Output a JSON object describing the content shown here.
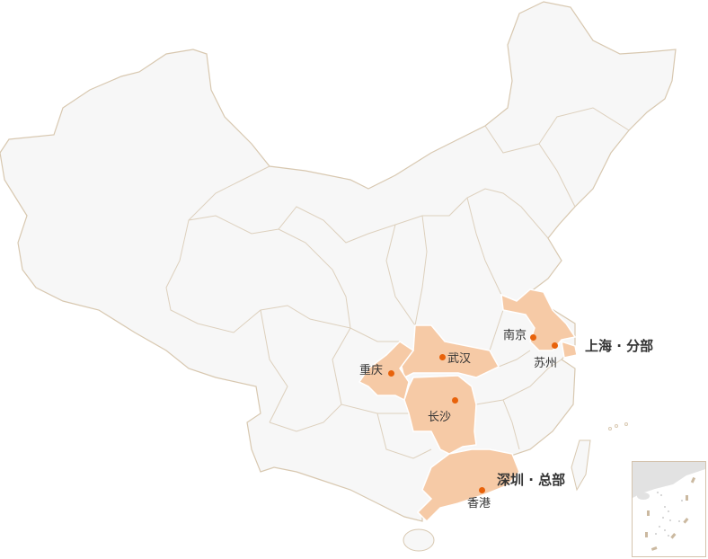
{
  "colors": {
    "land": "#f7f7f7",
    "border": "#d8c8b0",
    "highlight": "#f6caa6",
    "dot": "#e8620a"
  },
  "highlighted_regions": [
    "江苏",
    "上海",
    "湖北",
    "重庆",
    "湖南",
    "广东"
  ],
  "cities": [
    {
      "name": "南京"
    },
    {
      "name": "苏州"
    },
    {
      "name": "武汉"
    },
    {
      "name": "重庆"
    },
    {
      "name": "长沙"
    },
    {
      "name": "香港"
    }
  ],
  "offices": [
    {
      "label": "上海 · 分部"
    },
    {
      "label": "深圳 · 总部"
    }
  ]
}
